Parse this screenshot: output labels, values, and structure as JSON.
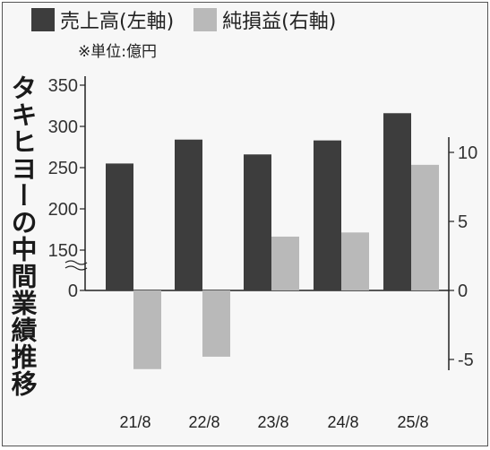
{
  "legend": {
    "sales_label": "売上高(左軸)",
    "profit_label": "純損益(右軸)",
    "unit": "※単位:億円"
  },
  "side_title": "タキヒヨーの中間業績推移",
  "colors": {
    "sales": "#3d3d3d",
    "profit": "#b9b9b9"
  },
  "chart_data": {
    "type": "bar",
    "title": "タキヒヨーの中間業績推移",
    "categories": [
      "21/8",
      "22/8",
      "23/8",
      "24/8",
      "25/8"
    ],
    "series": [
      {
        "name": "売上高(左軸)",
        "axis": "left",
        "values": [
          255,
          284,
          266,
          283,
          316
        ]
      },
      {
        "name": "純損益(右軸)",
        "axis": "right",
        "values": [
          -5.7,
          -4.8,
          3.9,
          4.2,
          9.1
        ]
      }
    ],
    "left_axis": {
      "ticks": [
        "0",
        "150",
        "200",
        "250",
        "300",
        "350"
      ],
      "axis_break": true
    },
    "right_axis": {
      "ticks": [
        "-5",
        "0",
        "5",
        "10"
      ],
      "range": [
        -5,
        10
      ]
    },
    "unit": "億円"
  }
}
